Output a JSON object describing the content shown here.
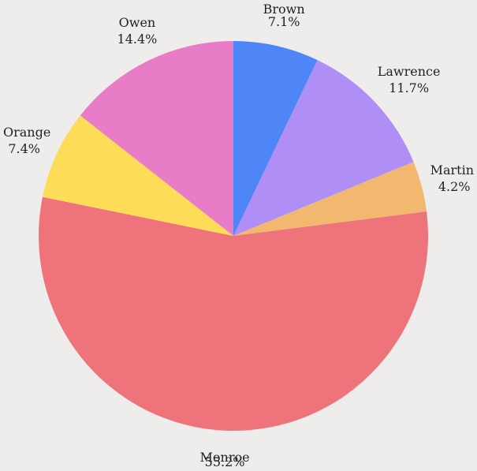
{
  "chart_data": {
    "type": "pie",
    "title": "",
    "slices": [
      {
        "label": "Brown",
        "value": 7.1,
        "value_label": "7.1%",
        "color": "#4f86f7"
      },
      {
        "label": "Lawrence",
        "value": 11.7,
        "value_label": "11.7%",
        "color": "#af8ef5"
      },
      {
        "label": "Martin",
        "value": 4.2,
        "value_label": "4.2%",
        "color": "#f2b86f"
      },
      {
        "label": "Monroe",
        "value": 55.2,
        "value_label": "55.2%",
        "color": "#ef737a"
      },
      {
        "label": "Orange",
        "value": 7.4,
        "value_label": "7.4%",
        "color": "#fddc58"
      },
      {
        "label": "Owen",
        "value": 14.4,
        "value_label": "14.4%",
        "color": "#e87cc6"
      }
    ],
    "start": "12 o'clock",
    "direction": "clockwise",
    "background": "#eeedeb",
    "legend": "none"
  }
}
